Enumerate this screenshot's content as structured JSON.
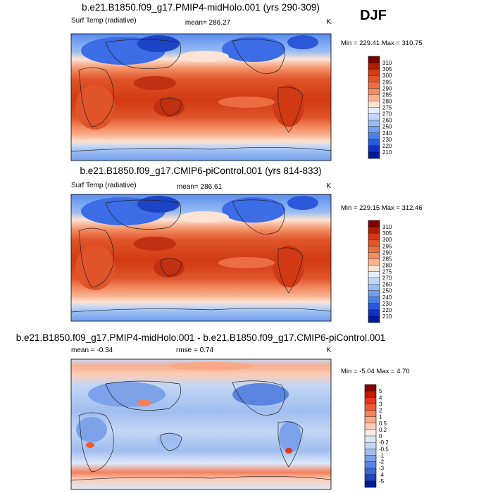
{
  "season": "DJF",
  "chart_data": [
    {
      "type": "heatmap",
      "title": "b.e21.B1850.f09_g17.PMIP4-midHolo.001 (yrs 290-309)",
      "variable": "Surf Temp (radiative)",
      "mean_label": "mean= 286.27",
      "units": "K",
      "minmax": "Min = 229.41 Max = 310.75",
      "legend": {
        "labels": [
          "310",
          "305",
          "300",
          "295",
          "290",
          "285",
          "280",
          "275",
          "270",
          "260",
          "250",
          "240",
          "230",
          "220",
          "210"
        ],
        "colors": [
          "#7d0000",
          "#ad1e04",
          "#d13a12",
          "#e0542a",
          "#ec6d40",
          "#f38c60",
          "#f9b190",
          "#fde3d4",
          "#e4eefc",
          "#c1d7f7",
          "#99bcf1",
          "#739ff0",
          "#4b7fe8",
          "#2a58d8",
          "#1032c4",
          "#001a9e"
        ]
      }
    },
    {
      "type": "heatmap",
      "title": "b.e21.B1850.f09_g17.CMIP6-piControl.001 (yrs 814-833)",
      "variable": "Surf Temp (radiative)",
      "mean_label": "mean= 286.61",
      "units": "K",
      "minmax": "Min = 229.15 Max = 312.46",
      "legend": {
        "labels": [
          "310",
          "305",
          "300",
          "295",
          "290",
          "285",
          "280",
          "275",
          "270",
          "260",
          "250",
          "240",
          "230",
          "220",
          "210"
        ],
        "colors": [
          "#7d0000",
          "#ad1e04",
          "#d13a12",
          "#e0542a",
          "#ec6d40",
          "#f38c60",
          "#f9b190",
          "#fde3d4",
          "#e4eefc",
          "#c1d7f7",
          "#99bcf1",
          "#739ff0",
          "#4b7fe8",
          "#2a58d8",
          "#1032c4",
          "#001a9e"
        ]
      }
    },
    {
      "type": "heatmap",
      "title": "b.e21.B1850.f09_g17.PMIP4-midHolo.001 - b.e21.B1850.f09_g17.CMIP6-piControl.001",
      "mean_label": "mean =  -0.34",
      "rmse_label": "rmse =   0.74",
      "units": "K",
      "minmax": "Min =  -5.04 Max =   4.70",
      "legend": {
        "labels": [
          "5",
          "4",
          "3",
          "2",
          "1",
          "0.5",
          "0.2",
          "0",
          "-0.2",
          "-0.5",
          "-1",
          "-2",
          "-3",
          "-4",
          "-5"
        ],
        "colors": [
          "#8b0000",
          "#c21a06",
          "#e2371a",
          "#f05a30",
          "#f5805a",
          "#f9a888",
          "#fbcdb8",
          "#fdeae0",
          "#dce8fa",
          "#c3d6f5",
          "#a0bdf0",
          "#7ca2ea",
          "#5a86e2",
          "#3a66d6",
          "#1c44c4",
          "#001a99"
        ]
      }
    }
  ]
}
